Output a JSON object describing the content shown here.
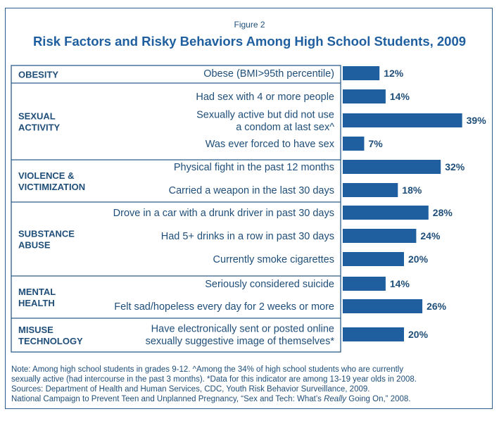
{
  "figure_label": "Figure 2",
  "title": "Risk Factors and Risky Behaviors Among High School Students, 2009",
  "colors": {
    "bar": "#1f5fa0",
    "text": "#1f4e79",
    "border": "#2b5d8c",
    "title": "#1f5fa0"
  },
  "chart_data": {
    "type": "bar",
    "orientation": "horizontal",
    "title": "Risk Factors and Risky Behaviors Among High School Students, 2009",
    "value_suffix": "%",
    "groups": [
      {
        "name": [
          "OBESITY"
        ],
        "items": [
          {
            "label": [
              "Obese (BMI>95th percentile)"
            ],
            "value": 12
          }
        ]
      },
      {
        "name": [
          "SEXUAL",
          "ACTIVITY"
        ],
        "items": [
          {
            "label": [
              "Had sex with 4 or more people"
            ],
            "value": 14
          },
          {
            "label": [
              "Sexually active but did not use",
              "a condom at last sex^"
            ],
            "value": 39
          },
          {
            "label": [
              "Was ever forced to have sex"
            ],
            "value": 7
          }
        ]
      },
      {
        "name": [
          "VIOLENCE &",
          "VICTIMIZATION"
        ],
        "items": [
          {
            "label": [
              "Physical fight in the past 12 months"
            ],
            "value": 32
          },
          {
            "label": [
              "Carried a weapon in the last 30 days"
            ],
            "value": 18
          }
        ]
      },
      {
        "name": [
          "SUBSTANCE",
          "ABUSE"
        ],
        "items": [
          {
            "label": [
              "Drove in a car with a drunk driver in past 30 days"
            ],
            "value": 28
          },
          {
            "label": [
              "Had 5+ drinks in a row in past 30 days"
            ],
            "value": 24
          },
          {
            "label": [
              "Currently smoke cigarettes"
            ],
            "value": 20
          }
        ]
      },
      {
        "name": [
          "MENTAL",
          "HEALTH"
        ],
        "items": [
          {
            "label": [
              "Seriously considered suicide"
            ],
            "value": 14
          },
          {
            "label": [
              "Felt sad/hopeless every day for 2 weeks or more"
            ],
            "value": 26
          }
        ]
      },
      {
        "name": [
          "MISUSE",
          "TECHNOLOGY"
        ],
        "items": [
          {
            "label": [
              "Have electronically sent or posted online",
              "sexually suggestive image of themselves*"
            ],
            "value": 20
          }
        ]
      }
    ]
  },
  "notes": {
    "line1": "Note: Among high school students in grades 9-12.  ^Among the 34% of high school students who are currently",
    "line2": "sexually active (had intercourse in the past 3 months).  *Data for this indicator are among 13-19 year olds in 2008.",
    "line3": "Sources: Department of Health and Human Services, CDC, Youth Risk Behavior Surveillance, 2009.",
    "line4_prefix": "National Campaign to Prevent Teen and Unplanned Pregnancy, “Sex and Tech:  What’s ",
    "line4_emph": "Really",
    "line4_suffix": " Going On,” 2008."
  }
}
